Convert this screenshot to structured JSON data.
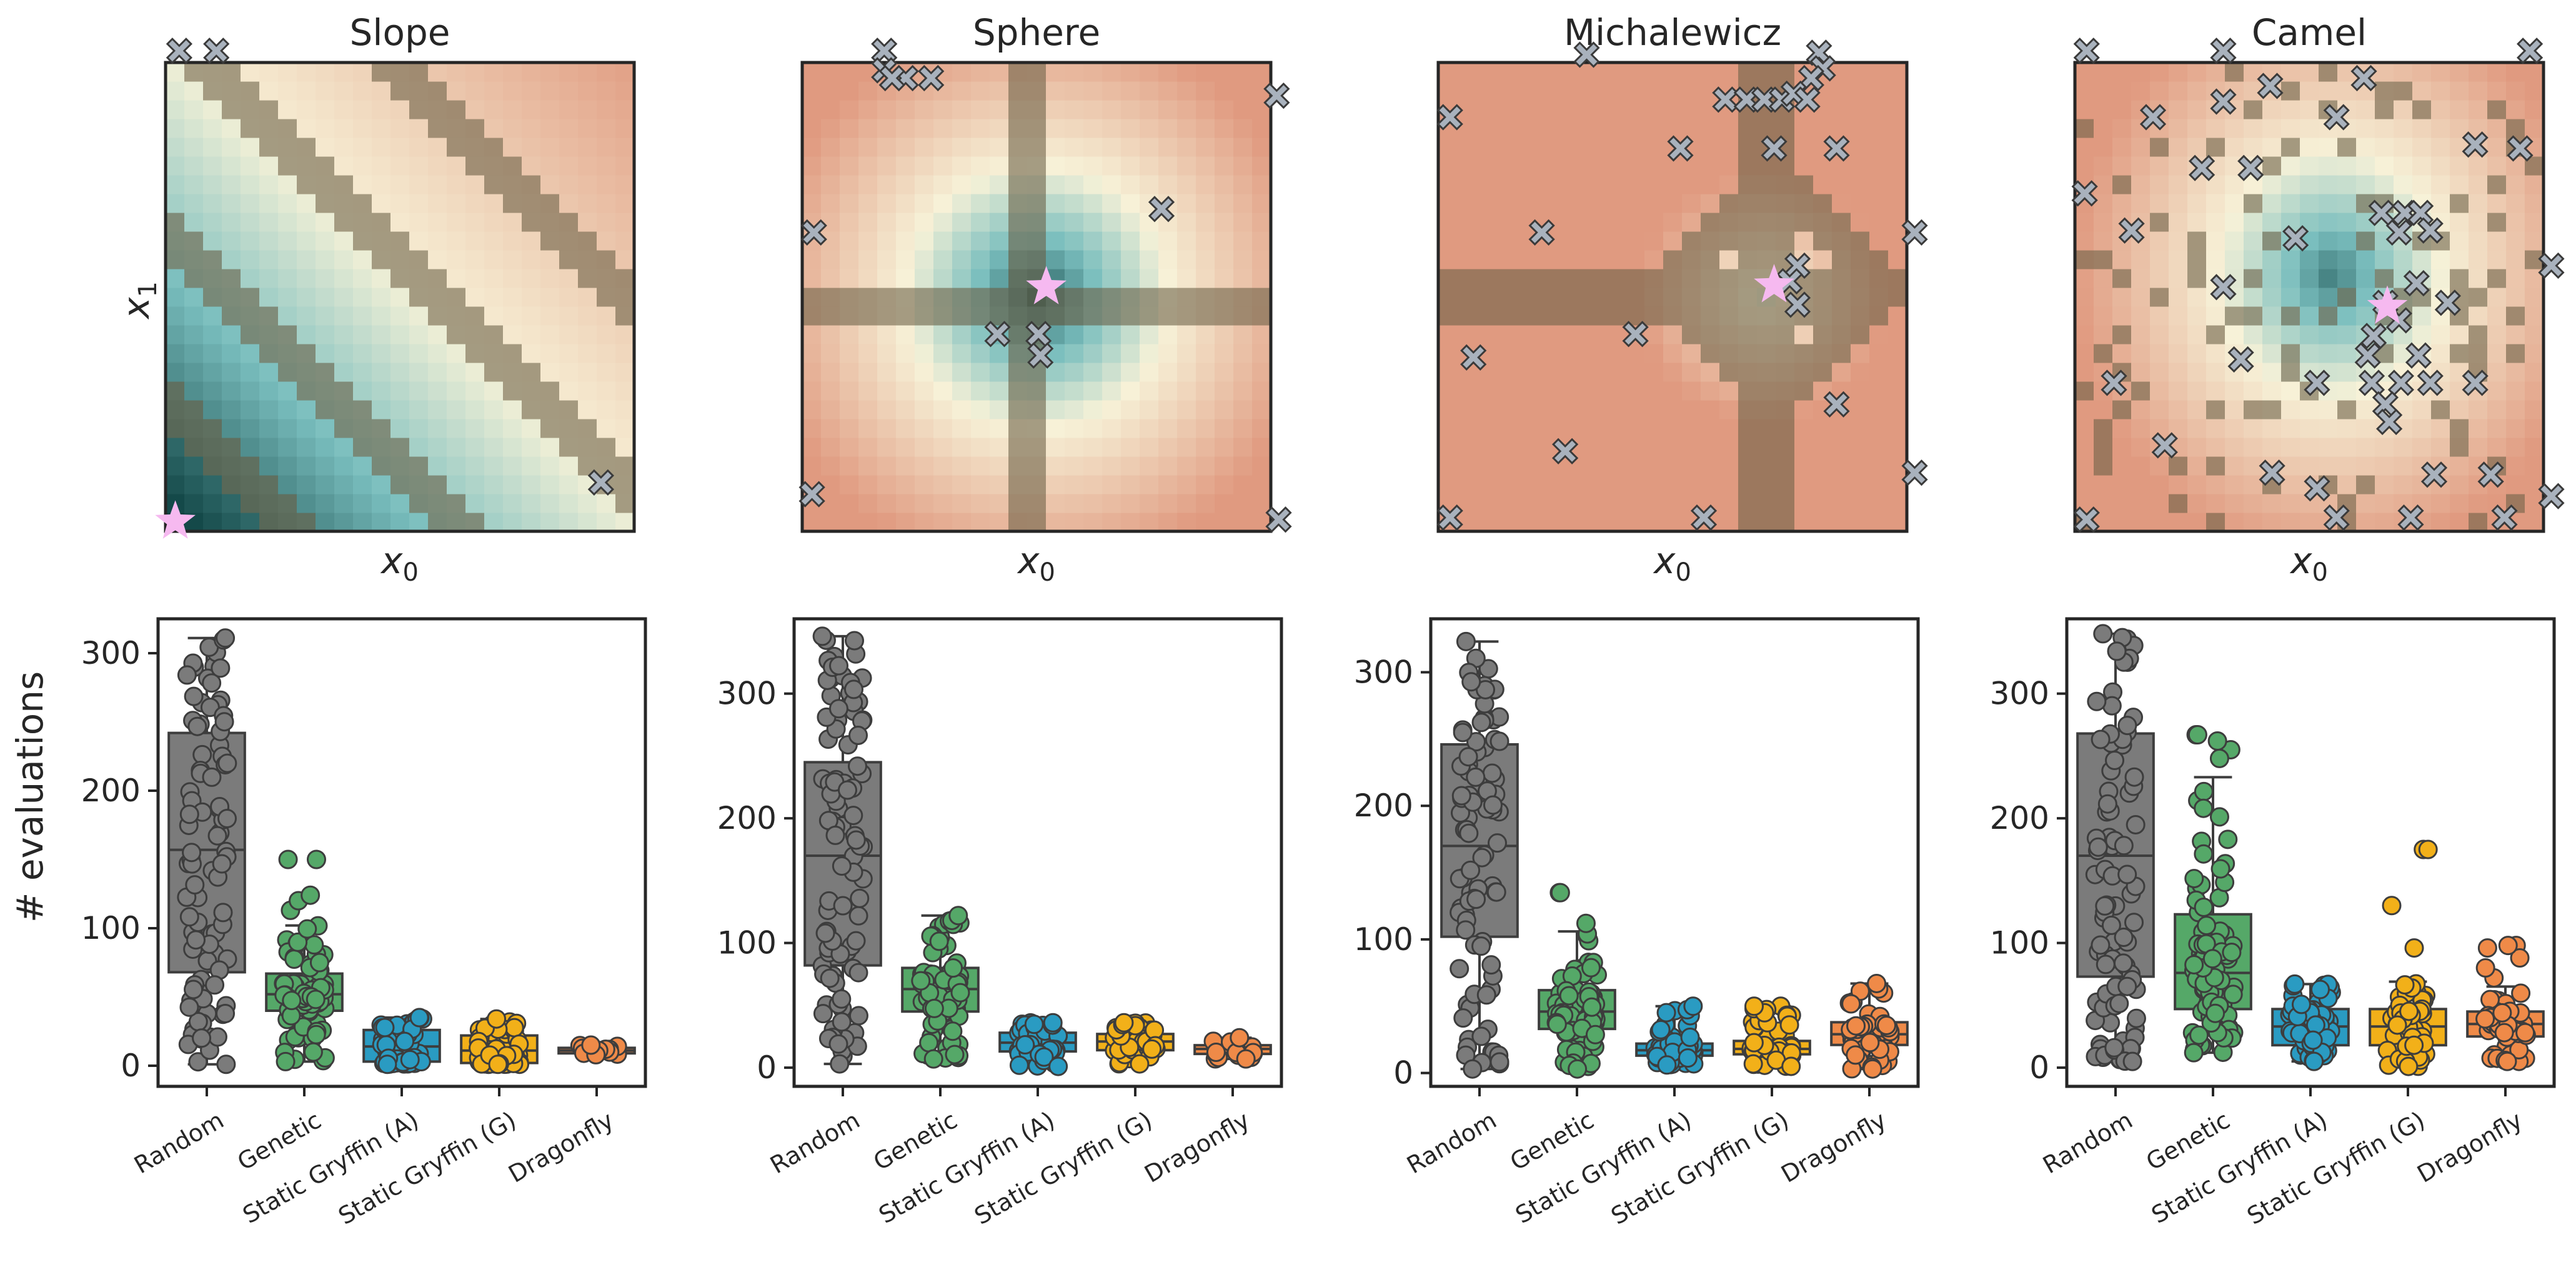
{
  "figure": {
    "ylabel": "# evaluations",
    "x0_label": "x",
    "x0_sub": "0",
    "x1_label": "x",
    "x1_sub": "1"
  },
  "colors": {
    "Random": "#7b7b7b",
    "Genetic": "#55a868",
    "Static Gryffin (A)": "#2a9bc2",
    "Static Gryffin (G)": "#f2b019",
    "Dragonfly": "#ef8a48",
    "marker": "#a9b2bd",
    "star": "#f6b9f0",
    "low": "#0b3f3f",
    "mid": "#f7f2d8",
    "high": "#e09a80"
  },
  "panels": [
    {
      "title": "Slope",
      "surface": "slope",
      "optimum": [
        0.5,
        0.5
      ],
      "samples": [
        [
          0.7,
          24.6
        ],
        [
          2.6,
          24.6
        ],
        [
          22.3,
          2.5
        ]
      ]
    },
    {
      "title": "Sphere",
      "surface": "sphere",
      "optimum": [
        12.5,
        12.5
      ],
      "samples": [
        [
          4.2,
          24.6
        ],
        [
          4.2,
          23.6
        ],
        [
          5.3,
          23.2
        ],
        [
          4.6,
          23.2
        ],
        [
          6.6,
          23.2
        ],
        [
          24.3,
          22.3
        ],
        [
          18.4,
          16.5
        ],
        [
          0.6,
          15.3
        ],
        [
          10.0,
          10.1
        ],
        [
          12.1,
          10.1
        ],
        [
          12.2,
          9.0
        ],
        [
          0.5,
          1.9
        ],
        [
          24.4,
          0.6
        ]
      ]
    },
    {
      "title": "Michalewicz",
      "surface": "michalewicz",
      "optimum": [
        17.2,
        12.6
      ],
      "samples": [
        [
          7.6,
          24.4
        ],
        [
          19.5,
          24.5
        ],
        [
          19.7,
          23.7
        ],
        [
          19.1,
          23.2
        ],
        [
          14.7,
          22.1
        ],
        [
          15.8,
          22.1
        ],
        [
          16.7,
          22.1
        ],
        [
          17.6,
          22.1
        ],
        [
          18.2,
          22.4
        ],
        [
          18.9,
          22.1
        ],
        [
          12.4,
          19.6
        ],
        [
          17.2,
          19.6
        ],
        [
          20.4,
          19.6
        ],
        [
          0.6,
          21.2
        ],
        [
          5.3,
          15.3
        ],
        [
          18.4,
          13.6
        ],
        [
          18.0,
          12.8
        ],
        [
          24.4,
          15.3
        ],
        [
          18.4,
          11.6
        ],
        [
          10.1,
          10.1
        ],
        [
          1.8,
          8.9
        ],
        [
          20.4,
          6.5
        ],
        [
          6.5,
          4.1
        ],
        [
          24.4,
          3.0
        ],
        [
          13.6,
          0.7
        ],
        [
          0.6,
          0.7
        ]
      ]
    },
    {
      "title": "Camel",
      "surface": "camel",
      "optimum": [
        16.0,
        11.5
      ],
      "samples": [
        [
          0.6,
          24.6
        ],
        [
          7.6,
          24.6
        ],
        [
          10.0,
          22.8
        ],
        [
          14.8,
          23.2
        ],
        [
          23.3,
          24.6
        ],
        [
          4.0,
          21.2
        ],
        [
          7.6,
          22.0
        ],
        [
          13.4,
          21.2
        ],
        [
          20.5,
          19.8
        ],
        [
          22.8,
          19.6
        ],
        [
          6.5,
          18.6
        ],
        [
          9.0,
          18.6
        ],
        [
          0.5,
          17.3
        ],
        [
          2.9,
          15.4
        ],
        [
          15.7,
          16.3
        ],
        [
          16.9,
          16.3
        ],
        [
          17.7,
          16.3
        ],
        [
          16.6,
          15.3
        ],
        [
          18.2,
          15.4
        ],
        [
          11.3,
          15.0
        ],
        [
          24.4,
          13.6
        ],
        [
          7.6,
          12.5
        ],
        [
          17.5,
          12.7
        ],
        [
          19.1,
          11.7
        ],
        [
          15.9,
          11.7
        ],
        [
          16.6,
          10.8
        ],
        [
          15.3,
          10.0
        ],
        [
          8.5,
          8.8
        ],
        [
          15.0,
          9.0
        ],
        [
          17.6,
          9.0
        ],
        [
          2.0,
          7.6
        ],
        [
          12.4,
          7.6
        ],
        [
          15.2,
          7.6
        ],
        [
          16.7,
          7.6
        ],
        [
          18.2,
          7.6
        ],
        [
          20.5,
          7.6
        ],
        [
          15.9,
          6.5
        ],
        [
          16.1,
          5.6
        ],
        [
          4.6,
          4.4
        ],
        [
          10.1,
          3.0
        ],
        [
          12.4,
          2.2
        ],
        [
          18.4,
          2.9
        ],
        [
          21.3,
          2.9
        ],
        [
          24.4,
          1.8
        ],
        [
          0.6,
          0.6
        ],
        [
          13.4,
          0.7
        ],
        [
          17.2,
          0.7
        ],
        [
          22.0,
          0.7
        ]
      ]
    }
  ],
  "chart_data": [
    {
      "type": "box",
      "categories": [
        "Random",
        "Genetic",
        "Static Gryffin (A)",
        "Static Gryffin (G)",
        "Dragonfly"
      ],
      "ylim": [
        -15,
        325
      ],
      "yticks": [
        0,
        100,
        200,
        300
      ],
      "series": [
        {
          "q1": 68,
          "median": 157,
          "q3": 242,
          "whislo": 1,
          "whishi": 311,
          "min": 1,
          "max": 311,
          "fliers": [],
          "n": 90
        },
        {
          "q1": 40,
          "median": 52,
          "q3": 67,
          "whislo": 3,
          "whishi": 102,
          "min": 3,
          "max": 150,
          "fliers": [
            113,
            120,
            124,
            150
          ],
          "n": 80
        },
        {
          "q1": 3,
          "median": 14,
          "q3": 26,
          "whislo": 1,
          "whishi": 35,
          "min": 1,
          "max": 35,
          "fliers": [],
          "n": 60
        },
        {
          "q1": 2,
          "median": 11,
          "q3": 22,
          "whislo": 1,
          "whishi": 34,
          "min": 1,
          "max": 34,
          "fliers": [],
          "n": 60
        },
        {
          "q1": 9,
          "median": 11,
          "q3": 13,
          "whislo": 8,
          "whishi": 15,
          "min": 8,
          "max": 15,
          "fliers": [],
          "n": 12
        }
      ]
    },
    {
      "type": "box",
      "categories": [
        "Random",
        "Genetic",
        "Static Gryffin (A)",
        "Static Gryffin (G)",
        "Dragonfly"
      ],
      "ylim": [
        -15,
        360
      ],
      "yticks": [
        0,
        100,
        200,
        300
      ],
      "series": [
        {
          "q1": 82,
          "median": 170,
          "q3": 245,
          "whislo": 3,
          "whishi": 346,
          "min": 3,
          "max": 346,
          "fliers": [],
          "n": 90
        },
        {
          "q1": 45,
          "median": 63,
          "q3": 80,
          "whislo": 7,
          "whishi": 122,
          "min": 7,
          "max": 122,
          "fliers": [],
          "n": 80
        },
        {
          "q1": 13,
          "median": 20,
          "q3": 28,
          "whislo": 1,
          "whishi": 36,
          "min": 1,
          "max": 36,
          "fliers": [],
          "n": 60
        },
        {
          "q1": 14,
          "median": 21,
          "q3": 27,
          "whislo": 3,
          "whishi": 36,
          "min": 3,
          "max": 36,
          "fliers": [],
          "n": 60
        },
        {
          "q1": 11,
          "median": 15,
          "q3": 18,
          "whislo": 7,
          "whishi": 24,
          "min": 7,
          "max": 24,
          "fliers": [],
          "n": 20
        }
      ]
    },
    {
      "type": "box",
      "categories": [
        "Random",
        "Genetic",
        "Static Gryffin (A)",
        "Static Gryffin (G)",
        "Dragonfly"
      ],
      "ylim": [
        -10,
        340
      ],
      "yticks": [
        0,
        100,
        200,
        300
      ],
      "series": [
        {
          "q1": 102,
          "median": 170,
          "q3": 246,
          "whislo": 3,
          "whishi": 323,
          "min": 3,
          "max": 323,
          "fliers": [],
          "n": 90
        },
        {
          "q1": 33,
          "median": 46,
          "q3": 62,
          "whislo": 3,
          "whishi": 106,
          "min": 3,
          "max": 135,
          "fliers": [
            135,
            112
          ],
          "n": 80
        },
        {
          "q1": 13,
          "median": 17,
          "q3": 22,
          "whislo": 6,
          "whishi": 50,
          "min": 6,
          "max": 50,
          "fliers": [],
          "n": 55
        },
        {
          "q1": 14,
          "median": 18,
          "q3": 24,
          "whislo": 5,
          "whishi": 50,
          "min": 5,
          "max": 50,
          "fliers": [],
          "n": 55
        },
        {
          "q1": 21,
          "median": 29,
          "q3": 38,
          "whislo": 3,
          "whishi": 67,
          "min": 3,
          "max": 67,
          "fliers": [],
          "n": 55
        }
      ]
    },
    {
      "type": "box",
      "categories": [
        "Random",
        "Genetic",
        "Static Gryffin (A)",
        "Static Gryffin (G)",
        "Dragonfly"
      ],
      "ylim": [
        -15,
        360
      ],
      "yticks": [
        0,
        100,
        200,
        300
      ],
      "series": [
        {
          "q1": 73,
          "median": 170,
          "q3": 268,
          "whislo": 5,
          "whishi": 348,
          "min": 5,
          "max": 348,
          "fliers": [],
          "n": 90
        },
        {
          "q1": 47,
          "median": 76,
          "q3": 123,
          "whislo": 12,
          "whishi": 233,
          "min": 12,
          "max": 267,
          "fliers": [
            255,
            262,
            267,
            248
          ],
          "n": 80
        },
        {
          "q1": 18,
          "median": 33,
          "q3": 47,
          "whislo": 5,
          "whishi": 67,
          "min": 5,
          "max": 67,
          "fliers": [],
          "n": 60
        },
        {
          "q1": 18,
          "median": 33,
          "q3": 47,
          "whislo": 1,
          "whishi": 69,
          "min": 1,
          "max": 175,
          "fliers": [
            96,
            130,
            175
          ],
          "n": 60
        },
        {
          "q1": 25,
          "median": 35,
          "q3": 45,
          "whislo": 5,
          "whishi": 65,
          "min": 5,
          "max": 98,
          "fliers": [
            72,
            80,
            88,
            96,
            98
          ],
          "n": 50
        }
      ]
    }
  ]
}
